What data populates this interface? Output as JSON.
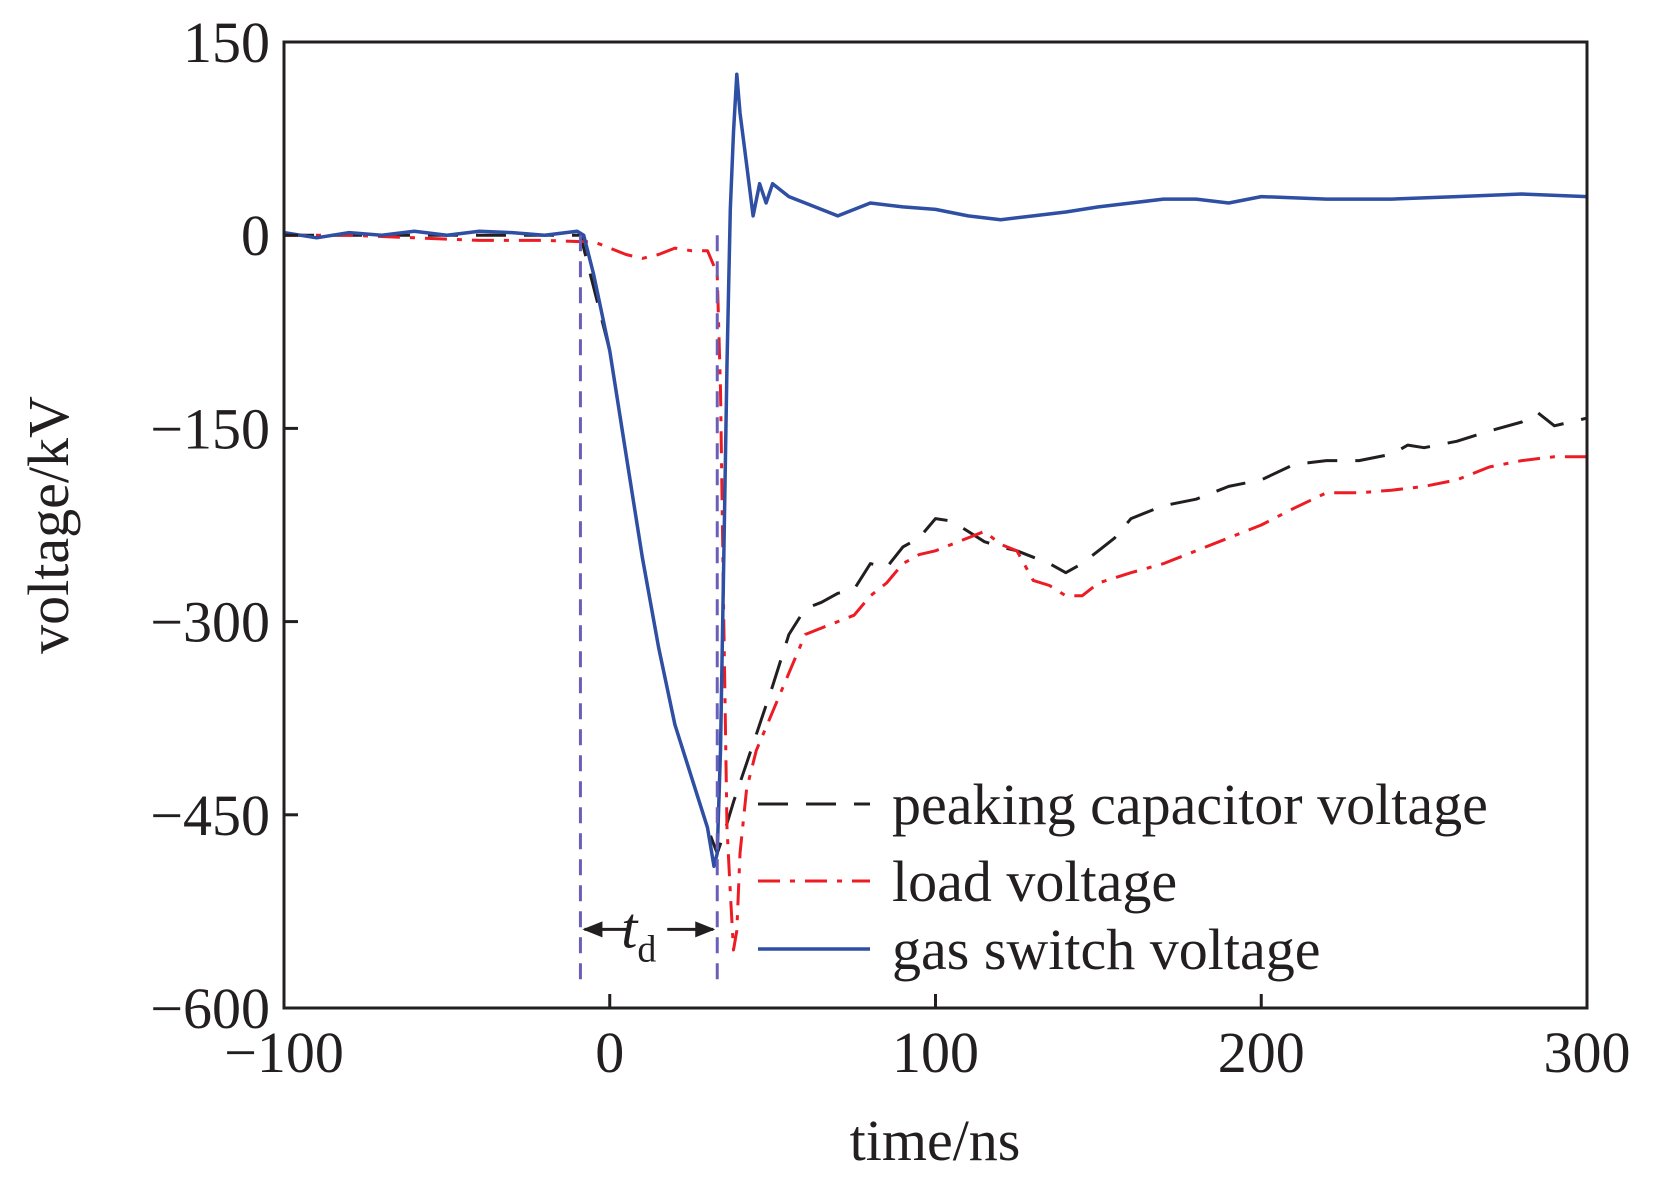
{
  "chart_data": {
    "type": "line",
    "xlabel": "time/ns",
    "ylabel": "voltage/kV",
    "xlim": [
      -100,
      300
    ],
    "ylim": [
      -600,
      150
    ],
    "xticks": [
      -100,
      0,
      100,
      200,
      300
    ],
    "yticks": [
      150,
      0,
      -150,
      -300,
      -450,
      -600
    ],
    "xtick_labels": [
      "−100",
      "0",
      "100",
      "200",
      "300"
    ],
    "ytick_labels": [
      "150",
      "0",
      "−150",
      "−300",
      "−450",
      "−600"
    ],
    "grid": false,
    "legend_position": "bottom-right",
    "annotation": {
      "label_main": "t",
      "label_sub": "d",
      "start_x": -9,
      "end_x": 33
    },
    "series": [
      {
        "name": "peaking capacitor voltage",
        "color": "#231f20",
        "style": "dashed",
        "x": [
          -100,
          -80,
          -60,
          -40,
          -20,
          -9,
          -5,
          0,
          5,
          10,
          15,
          20,
          25,
          30,
          33,
          35,
          38,
          42,
          46,
          50,
          55,
          60,
          65,
          70,
          75,
          80,
          85,
          90,
          95,
          100,
          105,
          110,
          115,
          120,
          125,
          130,
          135,
          140,
          145,
          150,
          155,
          160,
          165,
          170,
          180,
          190,
          200,
          210,
          220,
          230,
          240,
          245,
          250,
          260,
          270,
          280,
          285,
          290,
          300
        ],
        "y": [
          0,
          0,
          0,
          0,
          0,
          0,
          -40,
          -90,
          -170,
          -250,
          -320,
          -380,
          -420,
          -460,
          -480,
          -465,
          -440,
          -410,
          -380,
          -350,
          -310,
          -290,
          -285,
          -278,
          -275,
          -255,
          -258,
          -242,
          -235,
          -220,
          -222,
          -230,
          -238,
          -242,
          -245,
          -250,
          -255,
          -262,
          -255,
          -245,
          -235,
          -220,
          -215,
          -210,
          -205,
          -195,
          -190,
          -178,
          -175,
          -175,
          -170,
          -163,
          -165,
          -160,
          -152,
          -145,
          -138,
          -148,
          -142
        ]
      },
      {
        "name": "load voltage",
        "color": "#ed1c24",
        "style": "dashdot",
        "x": [
          -100,
          -80,
          -60,
          -40,
          -20,
          -9,
          -5,
          0,
          5,
          10,
          15,
          20,
          25,
          30,
          33,
          34,
          35,
          36,
          37,
          38,
          39,
          40,
          42,
          45,
          50,
          55,
          60,
          65,
          70,
          75,
          80,
          85,
          90,
          95,
          100,
          105,
          110,
          115,
          120,
          125,
          130,
          135,
          140,
          145,
          150,
          160,
          170,
          180,
          190,
          200,
          210,
          220,
          230,
          240,
          250,
          260,
          270,
          280,
          290,
          300
        ],
        "y": [
          0,
          0,
          -2,
          -4,
          -4,
          -5,
          -5,
          -10,
          -15,
          -18,
          -15,
          -10,
          -12,
          -12,
          -30,
          -120,
          -300,
          -460,
          -510,
          -555,
          -540,
          -480,
          -430,
          -400,
          -370,
          -340,
          -310,
          -305,
          -300,
          -295,
          -280,
          -270,
          -255,
          -248,
          -245,
          -240,
          -235,
          -230,
          -240,
          -245,
          -268,
          -272,
          -280,
          -280,
          -270,
          -262,
          -255,
          -245,
          -235,
          -225,
          -212,
          -200,
          -200,
          -198,
          -195,
          -190,
          -180,
          -175,
          -172,
          -172
        ]
      },
      {
        "name": "gas switch voltage",
        "color": "#2e4fa3",
        "style": "solid",
        "x": [
          -100,
          -90,
          -80,
          -70,
          -60,
          -50,
          -40,
          -30,
          -20,
          -10,
          -8,
          -5,
          0,
          5,
          10,
          15,
          20,
          25,
          30,
          32,
          33,
          34,
          35,
          36,
          37,
          38,
          39,
          40,
          42,
          44,
          46,
          48,
          50,
          55,
          60,
          70,
          80,
          90,
          100,
          110,
          120,
          130,
          140,
          150,
          160,
          170,
          180,
          190,
          200,
          220,
          240,
          260,
          280,
          300
        ],
        "y": [
          2,
          -2,
          2,
          0,
          3,
          0,
          3,
          2,
          0,
          3,
          0,
          -30,
          -90,
          -170,
          -250,
          -320,
          -380,
          -420,
          -460,
          -490,
          -480,
          -400,
          -250,
          -100,
          20,
          80,
          125,
          95,
          55,
          15,
          40,
          25,
          40,
          30,
          25,
          15,
          25,
          22,
          20,
          15,
          12,
          15,
          18,
          22,
          25,
          28,
          28,
          25,
          30,
          28,
          28,
          30,
          32,
          30
        ]
      }
    ]
  }
}
